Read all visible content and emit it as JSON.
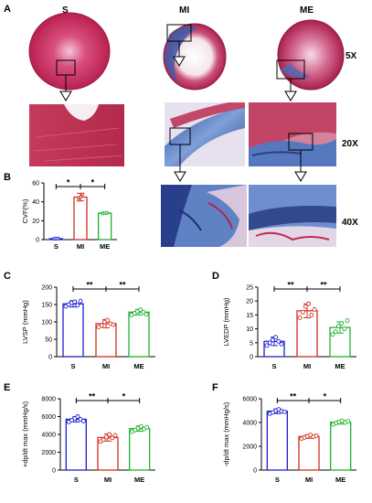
{
  "panel_labels": {
    "a": "A",
    "b": "B",
    "c": "C",
    "d": "D",
    "e": "E",
    "f": "F"
  },
  "columns": {
    "s": "S",
    "mi": "MI",
    "me": "ME"
  },
  "magnifications": {
    "low": "5X",
    "mid": "20X",
    "high": "40X"
  },
  "colors": {
    "s": "#1f1fd0",
    "mi": "#d03020",
    "me": "#20b030",
    "tissue_red": "#c8284a",
    "fibrosis_blue": "#3a5fb0"
  },
  "chart_data": [
    {
      "id": "B",
      "type": "bar",
      "categories": [
        "S",
        "MI",
        "ME"
      ],
      "ylabel": "CVF(%)",
      "ylim": [
        0,
        60
      ],
      "yticks": [
        0,
        20,
        40,
        60
      ],
      "values": [
        1,
        45,
        28
      ],
      "errors": [
        0.5,
        4,
        1
      ],
      "points": [
        [
          1,
          1,
          1.2
        ],
        [
          42,
          45,
          48
        ],
        [
          27.5,
          28,
          28.5
        ]
      ],
      "significance": [
        {
          "from": 0,
          "to": 1,
          "label": "*"
        },
        {
          "from": 1,
          "to": 2,
          "label": "*"
        }
      ]
    },
    {
      "id": "C",
      "type": "bar",
      "categories": [
        "S",
        "MI",
        "ME"
      ],
      "ylabel": "LVSP (mmHg)",
      "ylim": [
        0,
        200
      ],
      "yticks": [
        0,
        50,
        100,
        150,
        200
      ],
      "values": [
        152,
        95,
        128
      ],
      "errors": [
        9,
        12,
        8
      ],
      "points": [
        [
          145,
          150,
          155,
          158,
          148,
          160
        ],
        [
          85,
          90,
          100,
          105,
          95,
          92
        ],
        [
          120,
          125,
          130,
          135,
          128,
          122
        ]
      ],
      "significance": [
        {
          "from": 0,
          "to": 1,
          "label": "**"
        },
        {
          "from": 1,
          "to": 2,
          "label": "**"
        }
      ]
    },
    {
      "id": "D",
      "type": "bar",
      "categories": [
        "S",
        "MI",
        "ME"
      ],
      "ylabel": "LVEDP (mmHg)",
      "ylim": [
        0,
        25
      ],
      "yticks": [
        0,
        5,
        10,
        15,
        20,
        25
      ],
      "values": [
        5.5,
        16.5,
        10.5
      ],
      "errors": [
        1.5,
        2.5,
        2
      ],
      "points": [
        [
          4,
          5,
          6,
          7,
          5.5,
          4.5
        ],
        [
          14,
          16,
          18,
          19,
          15,
          17
        ],
        [
          8,
          9,
          11,
          12,
          10,
          13
        ]
      ],
      "significance": [
        {
          "from": 0,
          "to": 1,
          "label": "**"
        },
        {
          "from": 1,
          "to": 2,
          "label": "**"
        }
      ]
    },
    {
      "id": "E",
      "type": "bar",
      "categories": [
        "S",
        "MI",
        "ME"
      ],
      "ylabel": "+dp/dt max (mmHg/s)",
      "ylim": [
        0,
        8000
      ],
      "yticks": [
        0,
        2000,
        4000,
        6000,
        8000
      ],
      "values": [
        5700,
        3650,
        4650
      ],
      "errors": [
        300,
        400,
        300
      ],
      "points": [
        [
          5400,
          5600,
          5800,
          6000,
          5700,
          5500
        ],
        [
          3200,
          3400,
          3700,
          4000,
          3600,
          3900
        ],
        [
          4300,
          4500,
          4700,
          4900,
          4600,
          4800
        ]
      ],
      "significance": [
        {
          "from": 0,
          "to": 1,
          "label": "**"
        },
        {
          "from": 1,
          "to": 2,
          "label": "*"
        }
      ]
    },
    {
      "id": "F",
      "type": "bar",
      "categories": [
        "S",
        "MI",
        "ME"
      ],
      "ylabel": "-dp/dt max (mmHg/s)",
      "ylim": [
        0,
        6000
      ],
      "yticks": [
        0,
        2000,
        4000,
        6000
      ],
      "values": [
        4950,
        2820,
        4020
      ],
      "errors": [
        200,
        150,
        150
      ],
      "points": [
        [
          4750,
          4850,
          5000,
          5100,
          4950,
          4900
        ],
        [
          2650,
          2750,
          2850,
          2950,
          2800,
          2900
        ],
        [
          3850,
          3950,
          4050,
          4150,
          4000,
          4100
        ]
      ],
      "significance": [
        {
          "from": 0,
          "to": 1,
          "label": "**"
        },
        {
          "from": 1,
          "to": 2,
          "label": "*"
        }
      ]
    }
  ]
}
